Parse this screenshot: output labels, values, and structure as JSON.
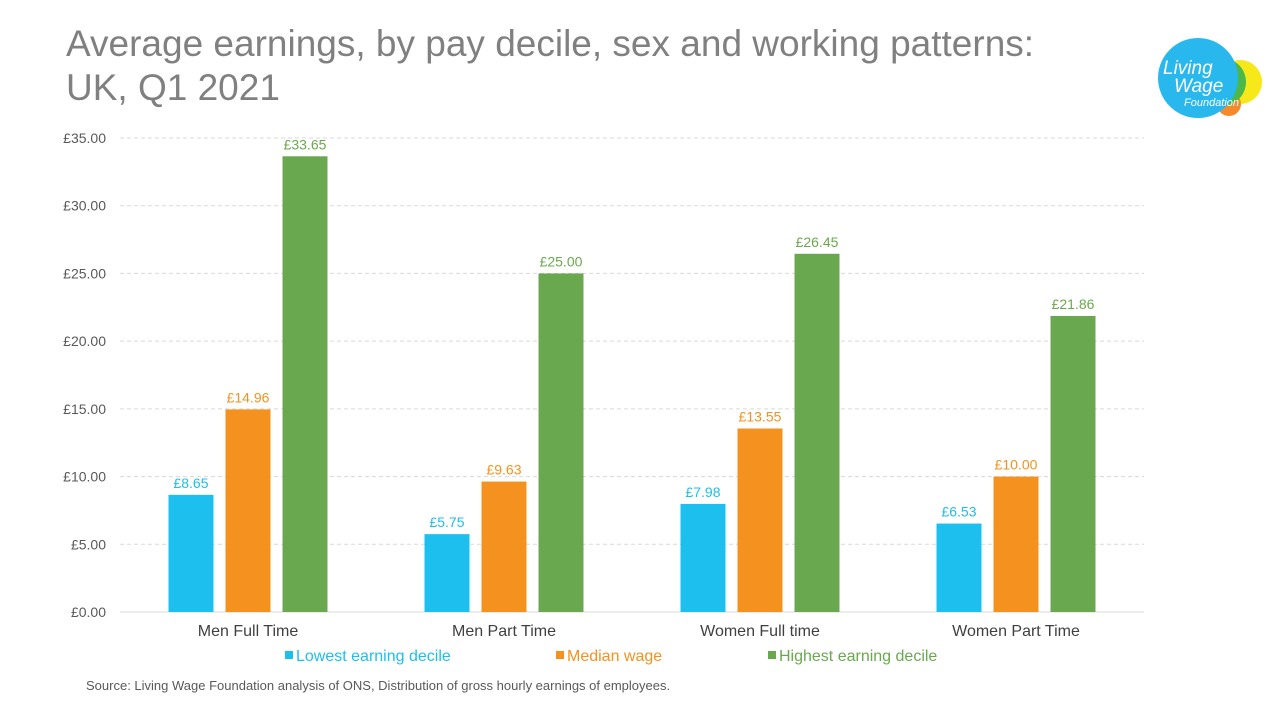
{
  "title_line1": "Average earnings, by pay decile, sex and working patterns:",
  "title_line2": "UK, Q1 2021",
  "logo": {
    "line1": "Living",
    "line2": "Wage",
    "line3": "Foundation"
  },
  "source": "Source: Living Wage Foundation analysis of ONS, Distribution of gross hourly earnings of employees.",
  "colors": {
    "lowest": "#1DBFEF",
    "median": "#F5911E",
    "highest": "#6AA84F",
    "logo_blue": "#28B8EE",
    "logo_green": "#4DB848",
    "logo_yellow": "#F7E81A",
    "logo_orange": "#F58A2A"
  },
  "chart_data": {
    "type": "bar",
    "categories": [
      "Men Full Time",
      "Men Part Time",
      "Women Full time",
      "Women Part Time"
    ],
    "series": [
      {
        "name": "Lowest earning decile",
        "values": [
          8.65,
          5.75,
          7.98,
          6.53
        ],
        "labels": [
          "£8.65",
          "£5.75",
          "£7.98",
          "£6.53"
        ],
        "color": "#1DBFEF"
      },
      {
        "name": "Median wage",
        "values": [
          14.96,
          9.63,
          13.55,
          10.0
        ],
        "labels": [
          "£14.96",
          "£9.63",
          "£13.55",
          "£10.00"
        ],
        "color": "#F5911E"
      },
      {
        "name": "Highest earning decile",
        "values": [
          33.65,
          25.0,
          26.45,
          21.86
        ],
        "labels": [
          "£33.65",
          "£25.00",
          "£26.45",
          "£21.86"
        ],
        "color": "#6AA84F"
      }
    ],
    "yticks": [
      0,
      5,
      10,
      15,
      20,
      25,
      30,
      35
    ],
    "ytick_labels": [
      "£0.00",
      "£5.00",
      "£10.00",
      "£15.00",
      "£20.00",
      "£25.00",
      "£30.00",
      "£35.00"
    ],
    "ylim": [
      0,
      35
    ],
    "grid": true,
    "legend_position": "bottom"
  }
}
